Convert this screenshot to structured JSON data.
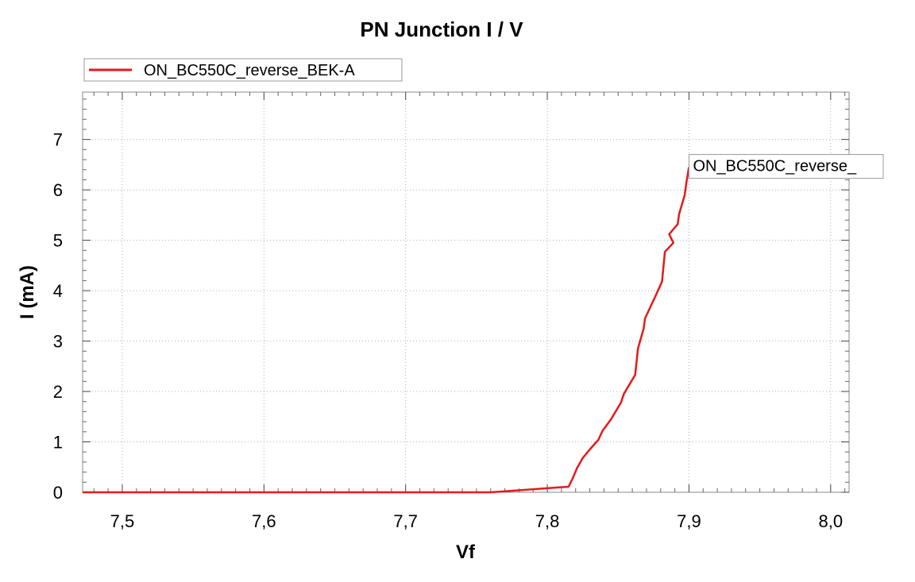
{
  "chart_data": {
    "type": "line",
    "title": "PN Junction I / V",
    "xlabel": "Vf",
    "ylabel": "I (mA)",
    "xlim": [
      7.472,
      8.013
    ],
    "ylim": [
      0,
      7.94
    ],
    "grid": true,
    "legend_position": "top-left",
    "x_ticks": [
      7.5,
      7.6,
      7.7,
      7.8,
      7.9,
      8.0
    ],
    "x_tick_labels": [
      "7,5",
      "7,6",
      "7,7",
      "7,8",
      "7,9",
      "8,0"
    ],
    "y_ticks": [
      0,
      1,
      2,
      3,
      4,
      5,
      6,
      7
    ],
    "y_tick_labels": [
      "0",
      "1",
      "2",
      "3",
      "4",
      "5",
      "6",
      "7"
    ],
    "series": [
      {
        "name": "ON_BC550C_reverse_BEK-A",
        "color": "#e41a1c",
        "x": [
          7.472,
          7.76,
          7.78,
          7.8,
          7.815,
          7.818,
          7.821,
          7.825,
          7.83,
          7.836,
          7.839,
          7.845,
          7.852,
          7.854,
          7.862,
          7.864,
          7.868,
          7.869,
          7.876,
          7.881,
          7.883,
          7.889,
          7.886,
          7.892,
          7.893,
          7.897,
          7.898,
          7.9
        ],
        "y": [
          0,
          0,
          0.04,
          0.08,
          0.11,
          0.28,
          0.48,
          0.68,
          0.85,
          1.04,
          1.22,
          1.45,
          1.78,
          1.95,
          2.33,
          2.85,
          3.25,
          3.45,
          3.87,
          4.18,
          4.77,
          4.95,
          5.12,
          5.32,
          5.52,
          5.9,
          6.12,
          6.45
        ]
      }
    ],
    "annotations": [
      {
        "text": "ON_BC550C_reverse_",
        "at_x": 7.9,
        "at_y": 6.45
      }
    ]
  }
}
